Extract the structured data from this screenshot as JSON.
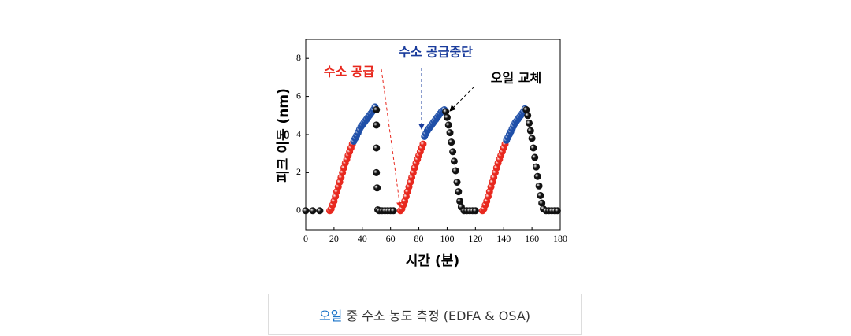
{
  "chart_data": {
    "type": "scatter",
    "x_label": "시간 (분)",
    "y_label": "피크 이동 (nm)",
    "annotations": [
      "수소  공급",
      "수소  공급중단",
      "오일  교체"
    ],
    "xlim": [
      0,
      180
    ],
    "xticks": [
      0,
      20,
      40,
      60,
      80,
      100,
      120,
      140,
      160,
      180
    ],
    "ylim": [
      -1,
      9
    ],
    "yticks": [
      0,
      2,
      4,
      6,
      8
    ],
    "series": [
      {
        "color": "#e8281e",
        "x": [
          17,
          18,
          19,
          20,
          21,
          22,
          23,
          24,
          25,
          26,
          27,
          28,
          29,
          30,
          31,
          32,
          33,
          67,
          68,
          69,
          70,
          71,
          72,
          73,
          74,
          75,
          76,
          77,
          78,
          79,
          80,
          81,
          82,
          83,
          125,
          126,
          127,
          128,
          129,
          130,
          131,
          132,
          133,
          134,
          135,
          136,
          137,
          138,
          139,
          140,
          141
        ],
        "values": [
          0,
          0.1,
          0.3,
          0.5,
          0.75,
          1.0,
          1.25,
          1.5,
          1.75,
          2.0,
          2.25,
          2.5,
          2.7,
          2.9,
          3.1,
          3.3,
          3.5,
          0,
          0.1,
          0.3,
          0.5,
          0.75,
          1.0,
          1.25,
          1.5,
          1.75,
          2.0,
          2.25,
          2.5,
          2.7,
          2.9,
          3.1,
          3.3,
          3.5,
          0,
          0.1,
          0.3,
          0.5,
          0.75,
          1.0,
          1.25,
          1.5,
          1.75,
          2.0,
          2.25,
          2.5,
          2.7,
          2.9,
          3.1,
          3.3,
          3.5
        ]
      },
      {
        "color": "#1f4fa8",
        "x": [
          34,
          35,
          36,
          37,
          38,
          39,
          40,
          41,
          42,
          43,
          44,
          45,
          46,
          47,
          48,
          49,
          84,
          85,
          86,
          87,
          88,
          89,
          90,
          91,
          92,
          93,
          94,
          95,
          96,
          97,
          98,
          142,
          143,
          144,
          145,
          146,
          147,
          148,
          149,
          150,
          151,
          152,
          153,
          154,
          155
        ],
        "values": [
          3.65,
          3.8,
          3.95,
          4.1,
          4.25,
          4.4,
          4.5,
          4.6,
          4.7,
          4.8,
          4.9,
          5.0,
          5.1,
          5.2,
          5.3,
          5.45,
          3.9,
          4.05,
          4.2,
          4.3,
          4.4,
          4.5,
          4.6,
          4.7,
          4.8,
          4.9,
          5.0,
          5.1,
          5.2,
          5.25,
          5.3,
          3.7,
          3.85,
          4.0,
          4.15,
          4.3,
          4.45,
          4.6,
          4.7,
          4.8,
          4.9,
          5.0,
          5.1,
          5.2,
          5.35
        ]
      },
      {
        "color": "#111111",
        "x": [
          0,
          5,
          10,
          50,
          50,
          50,
          50,
          50.5,
          51,
          52,
          54,
          56,
          58,
          60,
          62,
          99,
          100,
          101,
          102,
          103,
          104,
          105,
          106,
          107,
          108,
          109,
          110,
          112,
          114,
          116,
          118,
          120,
          156,
          157,
          158,
          159,
          160,
          161,
          162,
          163,
          164,
          165,
          166,
          167,
          168,
          170,
          172,
          174,
          176,
          178
        ],
        "values": [
          0,
          0,
          0,
          5.3,
          4.5,
          3.3,
          2.0,
          1.2,
          0.05,
          0,
          0,
          0,
          0,
          0,
          0,
          5.2,
          4.9,
          4.5,
          4.1,
          3.6,
          3.1,
          2.6,
          2.1,
          1.5,
          1.0,
          0.5,
          0.2,
          0,
          0,
          0,
          0,
          0,
          5.3,
          5.0,
          4.6,
          4.2,
          3.8,
          3.3,
          2.8,
          2.3,
          1.8,
          1.3,
          0.8,
          0.4,
          0.1,
          0,
          0,
          0,
          0,
          0
        ]
      }
    ]
  },
  "caption": {
    "highlight": "오일",
    "text": "중 수소 농도 측정 (EDFA & OSA)"
  }
}
